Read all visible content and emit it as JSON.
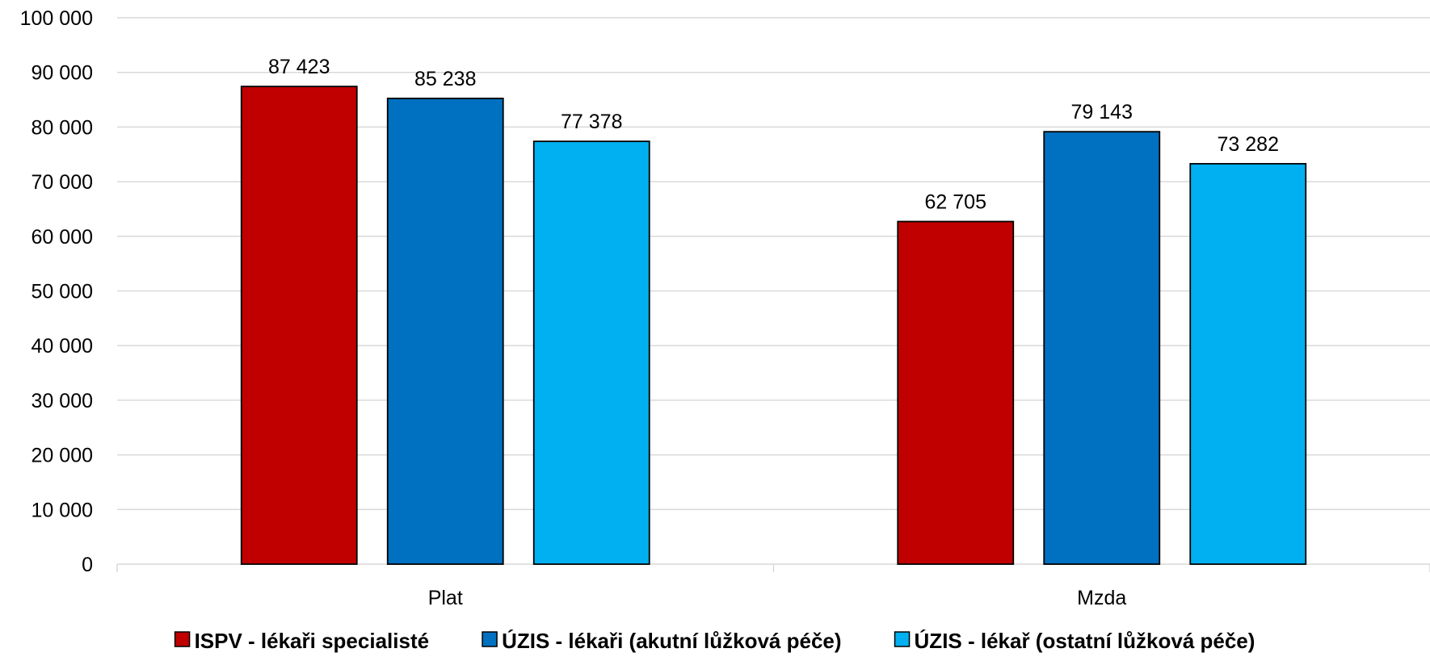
{
  "chart_data": {
    "type": "bar",
    "categories": [
      "Plat",
      "Mzda"
    ],
    "series": [
      {
        "name": "ISPV - lékaři specialisté",
        "values": [
          87423,
          62705
        ],
        "color": "#c00000"
      },
      {
        "name": "ÚZIS - lékaři (akutní lůžková péče)",
        "values": [
          85238,
          79143
        ],
        "color": "#0070c0"
      },
      {
        "name": "ÚZIS - lékař (ostatní lůžková péče)",
        "values": [
          77378,
          73282
        ],
        "color": "#00b0f0"
      }
    ],
    "data_labels": [
      [
        "87 423",
        "62 705"
      ],
      [
        "85 238",
        "79 143"
      ],
      [
        "77 378",
        "73 282"
      ]
    ],
    "ylim": [
      0,
      100000
    ],
    "yticks": [
      0,
      10000,
      20000,
      30000,
      40000,
      50000,
      60000,
      70000,
      80000,
      90000,
      100000
    ],
    "ytick_labels": [
      "0",
      "10 000",
      "20 000",
      "30 000",
      "40 000",
      "50 000",
      "60 000",
      "70 000",
      "80 000",
      "90 000",
      "100 000"
    ],
    "grid": true,
    "legend_position": "bottom",
    "title": "",
    "xlabel": "",
    "ylabel": ""
  }
}
